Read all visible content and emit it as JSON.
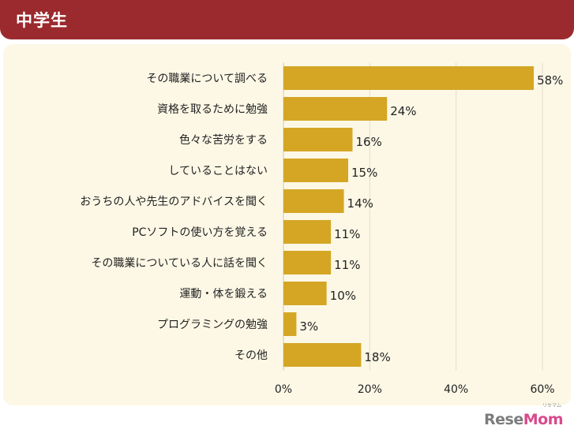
{
  "header": {
    "title": "中学生"
  },
  "colors": {
    "header_bg": "#9b2a2e",
    "panel_bg": "#fdf8e6",
    "bar": "#d4a624",
    "grid": "#e2dccb"
  },
  "chart_data": {
    "type": "bar",
    "orientation": "horizontal",
    "title": "",
    "xlabel": "",
    "ylabel": "",
    "categories": [
      "その職業について調べる",
      "資格を取るために勉強",
      "色々な苦労をする",
      "していることはない",
      "おうちの人や先生のアドバイスを聞く",
      "PCソフトの使い方を覚える",
      "その職業についている人に話を聞く",
      "運動・体を鍛える",
      "プログラミングの勉強",
      "その他"
    ],
    "values": [
      58,
      24,
      16,
      15,
      14,
      11,
      11,
      10,
      3,
      18
    ],
    "value_labels": [
      "58%",
      "24%",
      "16%",
      "15%",
      "14%",
      "11%",
      "11%",
      "10%",
      "3%",
      "18%"
    ],
    "xlim": [
      0,
      60
    ],
    "xticks": [
      0,
      20,
      40,
      60
    ],
    "xtick_labels": [
      "0%",
      "20%",
      "40%",
      "60%"
    ],
    "grid": true
  },
  "watermark": {
    "part1": "Rese",
    "part2": "Mom",
    "sub": "リセマム"
  }
}
